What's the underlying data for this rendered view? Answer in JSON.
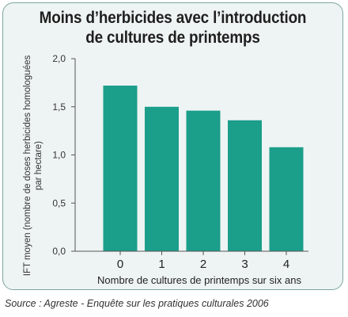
{
  "chart_data": {
    "type": "bar",
    "title_lines": [
      "Moins d’herbicides avec l’introduction",
      "de cultures de printemps"
    ],
    "categories": [
      "0",
      "1",
      "2",
      "3",
      "4"
    ],
    "values": [
      1.72,
      1.5,
      1.46,
      1.36,
      1.08
    ],
    "ylim": [
      0,
      2
    ],
    "yticks": [
      "0,0",
      "0,5",
      "1,0",
      "1,5",
      "2,0"
    ],
    "xlabel": "Nombre de cultures de printemps sur six ans",
    "ylabel_lines": [
      "IFT moyen (nombre de doses herbicides homologuées",
      "par hectare)"
    ],
    "bar_color": "#1b9e8a",
    "grid": false
  },
  "source": "Source : Agreste - Enquête sur les pratiques culturales 2006"
}
